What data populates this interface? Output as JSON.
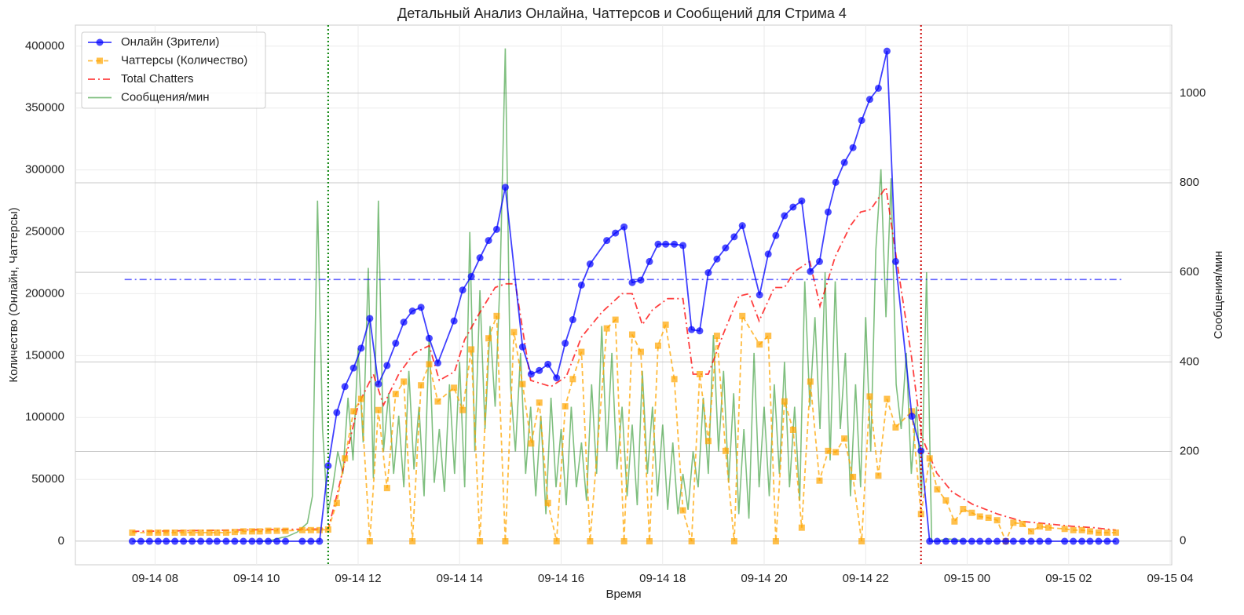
{
  "chart_data": {
    "type": "line",
    "title": "Детальный Анализ Онлайна, Чаттерсов и Сообщений для Стрима 4",
    "xlabel": "Время",
    "ylabel": "Количество (Онлайн, Чаттерсы)",
    "y2label": "Сообщения/мин",
    "xlim": [
      6.43,
      28.03
    ],
    "xticks": [
      {
        "value": 8,
        "label": "09-14 08"
      },
      {
        "value": 10,
        "label": "09-14 10"
      },
      {
        "value": 12,
        "label": "09-14 12"
      },
      {
        "value": 14,
        "label": "09-14 14"
      },
      {
        "value": 16,
        "label": "09-14 16"
      },
      {
        "value": 18,
        "label": "09-14 18"
      },
      {
        "value": 20,
        "label": "09-14 20"
      },
      {
        "value": 22,
        "label": "09-14 22"
      },
      {
        "value": 24,
        "label": "09-15 00"
      },
      {
        "value": 26,
        "label": "09-15 02"
      },
      {
        "value": 28,
        "label": "09-15 04"
      }
    ],
    "ylim": [
      -19000,
      417000
    ],
    "yticks": [
      0,
      50000,
      100000,
      150000,
      200000,
      250000,
      300000,
      350000,
      400000
    ],
    "y2lim": [
      -53,
      1152
    ],
    "y2ticks": [
      0,
      200,
      400,
      600,
      800,
      1000
    ],
    "y2color": "#008000",
    "grid": true,
    "legend": "upper left",
    "series": [
      {
        "name": "Онлайн (Зрители)",
        "color": "#0000ff",
        "linestyle": "solid",
        "marker": "circle",
        "x": [
          7.55,
          7.72,
          7.89,
          8.06,
          8.22,
          8.39,
          8.56,
          8.73,
          8.9,
          9.07,
          9.22,
          9.4,
          9.57,
          9.74,
          9.91,
          10.06,
          10.23,
          10.4,
          10.57,
          10.9,
          11.07,
          11.24,
          11.41,
          11.58,
          11.74,
          11.91,
          12.06,
          12.23,
          12.4,
          12.57,
          12.74,
          12.9,
          13.07,
          13.24,
          13.4,
          13.57,
          13.89,
          14.06,
          14.23,
          14.4,
          14.57,
          14.73,
          14.9,
          15.24,
          15.41,
          15.57,
          15.74,
          15.91,
          16.08,
          16.23,
          16.4,
          16.57,
          16.9,
          17.07,
          17.24,
          17.4,
          17.57,
          17.74,
          17.91,
          18.06,
          18.23,
          18.4,
          18.57,
          18.73,
          18.9,
          19.07,
          19.24,
          19.41,
          19.57,
          19.91,
          20.08,
          20.23,
          20.4,
          20.57,
          20.74,
          20.91,
          21.09,
          21.26,
          21.41,
          21.58,
          21.75,
          21.92,
          22.08,
          22.25,
          22.42,
          22.59,
          22.91,
          23.09,
          23.26,
          23.41,
          23.58,
          23.75,
          23.92,
          24.09,
          24.25,
          24.42,
          24.59,
          24.76,
          24.91,
          25.09,
          25.26,
          25.43,
          25.6,
          25.92,
          26.09,
          26.26,
          26.42,
          26.59,
          26.76,
          26.93
        ],
        "values": [
          0,
          0,
          0,
          0,
          0,
          0,
          0,
          0,
          0,
          0,
          0,
          0,
          0,
          0,
          0,
          0,
          0,
          0,
          0,
          0,
          0,
          0,
          61000,
          104000,
          125000,
          140000,
          156000,
          180000,
          127000,
          142000,
          160000,
          177000,
          186000,
          189000,
          164000,
          144000,
          178000,
          203000,
          214000,
          229000,
          243000,
          252000,
          286000,
          157000,
          135000,
          138000,
          143000,
          132000,
          160000,
          179000,
          207000,
          224000,
          243000,
          249000,
          254000,
          209000,
          211000,
          226000,
          240000,
          240000,
          240000,
          239000,
          171000,
          170000,
          217000,
          228000,
          237000,
          246000,
          255000,
          199000,
          232000,
          247000,
          263000,
          270000,
          275000,
          218000,
          226000,
          266000,
          290000,
          306000,
          318000,
          340000,
          357000,
          366000,
          396000,
          226000,
          101000,
          73000,
          0,
          0,
          0,
          0,
          0,
          0,
          0,
          0,
          0,
          0,
          0,
          0,
          0,
          0,
          0,
          0,
          0,
          0,
          0,
          0,
          0,
          0
        ]
      },
      {
        "name": "Чаттерсы (Количество)",
        "color": "#ffa500",
        "linestyle": "dashed",
        "marker": "square",
        "x": [
          7.55,
          7.89,
          8.06,
          8.22,
          8.39,
          8.56,
          8.73,
          8.9,
          9.07,
          9.22,
          9.4,
          9.57,
          9.74,
          9.91,
          10.06,
          10.23,
          10.4,
          10.57,
          10.9,
          11.07,
          11.24,
          11.41,
          11.58,
          11.74,
          11.91,
          12.06,
          12.23,
          12.4,
          12.57,
          12.74,
          12.9,
          13.07,
          13.24,
          13.4,
          13.57,
          13.89,
          14.06,
          14.23,
          14.4,
          14.57,
          14.73,
          14.9,
          15.07,
          15.24,
          15.41,
          15.57,
          15.74,
          15.91,
          16.08,
          16.23,
          16.4,
          16.57,
          16.9,
          17.07,
          17.24,
          17.4,
          17.57,
          17.74,
          17.91,
          18.06,
          18.23,
          18.4,
          18.57,
          18.73,
          18.9,
          19.07,
          19.24,
          19.41,
          19.57,
          19.91,
          20.08,
          20.23,
          20.4,
          20.57,
          20.74,
          20.91,
          21.09,
          21.26,
          21.41,
          21.58,
          21.75,
          21.92,
          22.08,
          22.25,
          22.42,
          22.59,
          22.91,
          23.09,
          23.26,
          23.41,
          23.58,
          23.75,
          23.92,
          24.09,
          24.25,
          24.42,
          24.59,
          24.76,
          24.91,
          25.09,
          25.26,
          25.43,
          25.6,
          25.92,
          26.09,
          26.26,
          26.42,
          26.59,
          26.76,
          26.93
        ],
        "values": [
          7000,
          7000,
          7000,
          7000,
          7000,
          7000,
          7000,
          7000,
          7000,
          7000,
          7000,
          7500,
          8000,
          8000,
          8000,
          8500,
          8500,
          8500,
          9000,
          9000,
          9000,
          9500,
          31000,
          67000,
          105000,
          115000,
          0,
          106000,
          43000,
          119000,
          129000,
          0,
          126000,
          143000,
          113000,
          124000,
          106000,
          155000,
          0,
          164000,
          182000,
          0,
          169000,
          127000,
          79000,
          112000,
          31000,
          0,
          109000,
          131000,
          153000,
          0,
          172000,
          179000,
          0,
          167000,
          153000,
          0,
          158000,
          175000,
          131000,
          25000,
          0,
          135000,
          81000,
          166000,
          73000,
          0,
          182000,
          159000,
          166000,
          0,
          113000,
          90000,
          11000,
          129000,
          49000,
          73000,
          72000,
          83000,
          52000,
          0,
          117000,
          53000,
          115000,
          92000,
          105000,
          22000,
          67000,
          42000,
          33000,
          16000,
          26000,
          23000,
          20000,
          19000,
          17000,
          0,
          15000,
          14000,
          8000,
          12000,
          11000,
          10000,
          9000,
          9000,
          8000,
          7000,
          7000,
          7000
        ]
      },
      {
        "name": "Total Chatters",
        "color": "#ff0000",
        "linestyle": "dashdot",
        "marker": null,
        "x": [
          7.55,
          11.41,
          11.6,
          12.0,
          12.3,
          12.5,
          12.8,
          13.1,
          13.4,
          13.6,
          13.9,
          14.1,
          14.4,
          14.7,
          14.9,
          15.1,
          15.4,
          15.8,
          16.1,
          16.4,
          16.8,
          17.2,
          17.4,
          17.6,
          17.8,
          18.1,
          18.4,
          18.6,
          18.9,
          19.2,
          19.5,
          19.7,
          19.9,
          20.2,
          20.4,
          20.6,
          20.9,
          21.1,
          21.4,
          21.7,
          21.9,
          22.1,
          22.4,
          22.6,
          22.9,
          23.1,
          23.4,
          23.7,
          24.1,
          24.6,
          25.1,
          25.6,
          26.1,
          26.5,
          26.93
        ],
        "values": [
          8000,
          10000,
          40000,
          110000,
          135000,
          110000,
          135000,
          152000,
          158000,
          130000,
          137000,
          163000,
          185000,
          205000,
          208000,
          208000,
          130000,
          125000,
          133000,
          165000,
          185000,
          200000,
          200000,
          175000,
          187000,
          196000,
          196000,
          135000,
          135000,
          168000,
          198000,
          200000,
          178000,
          205000,
          205000,
          218000,
          226000,
          190000,
          230000,
          255000,
          266000,
          268000,
          286000,
          230000,
          150000,
          85000,
          55000,
          40000,
          30000,
          22000,
          16000,
          14000,
          12000,
          11000,
          9000
        ]
      },
      {
        "name": "Сообщения/мин",
        "color": "#008000",
        "linestyle": "solid",
        "marker": null,
        "axis": "y2",
        "x": [
          10.0,
          10.1,
          10.2,
          10.3,
          10.4,
          10.5,
          10.6,
          10.7,
          10.8,
          10.9,
          11.0,
          11.1,
          11.2,
          11.3,
          11.4,
          11.5,
          11.6,
          11.7,
          11.8,
          11.9,
          12.0,
          12.1,
          12.2,
          12.3,
          12.4,
          12.5,
          12.6,
          12.7,
          12.8,
          12.9,
          13.0,
          13.1,
          13.2,
          13.3,
          13.4,
          13.5,
          13.6,
          13.7,
          13.8,
          13.9,
          14.0,
          14.1,
          14.2,
          14.3,
          14.4,
          14.5,
          14.6,
          14.7,
          14.8,
          14.9,
          15.0,
          15.1,
          15.2,
          15.3,
          15.4,
          15.5,
          15.6,
          15.7,
          15.8,
          15.9,
          16.0,
          16.1,
          16.2,
          16.3,
          16.4,
          16.5,
          16.6,
          16.7,
          16.8,
          16.9,
          17.0,
          17.1,
          17.2,
          17.3,
          17.4,
          17.5,
          17.6,
          17.7,
          17.8,
          17.9,
          18.0,
          18.1,
          18.2,
          18.3,
          18.4,
          18.5,
          18.6,
          18.7,
          18.8,
          18.9,
          19.0,
          19.1,
          19.2,
          19.3,
          19.4,
          19.5,
          19.6,
          19.7,
          19.8,
          19.9,
          20.0,
          20.1,
          20.2,
          20.3,
          20.4,
          20.5,
          20.6,
          20.7,
          20.8,
          20.9,
          21.0,
          21.1,
          21.2,
          21.3,
          21.4,
          21.5,
          21.6,
          21.7,
          21.8,
          21.9,
          22.0,
          22.1,
          22.2,
          22.3,
          22.4,
          22.5,
          22.6,
          22.7,
          22.8,
          22.9,
          23.0,
          23.1,
          23.2,
          23.3,
          23.4,
          23.6,
          23.8,
          24.0
        ],
        "values": [
          0,
          0,
          0,
          2,
          5,
          8,
          10,
          15,
          20,
          30,
          40,
          100,
          760,
          250,
          60,
          120,
          200,
          150,
          320,
          180,
          430,
          220,
          610,
          140,
          760,
          200,
          330,
          150,
          280,
          120,
          380,
          160,
          300,
          100,
          460,
          130,
          250,
          110,
          350,
          150,
          400,
          120,
          690,
          200,
          560,
          250,
          480,
          300,
          600,
          1100,
          350,
          200,
          420,
          150,
          300,
          100,
          280,
          60,
          320,
          120,
          250,
          80,
          300,
          120,
          220,
          90,
          350,
          150,
          480,
          200,
          420,
          160,
          300,
          100,
          260,
          80,
          380,
          150,
          300,
          100,
          260,
          70,
          220,
          60,
          150,
          70,
          200,
          120,
          320,
          150,
          460,
          200,
          380,
          130,
          330,
          60,
          250,
          50,
          420,
          120,
          300,
          100,
          350,
          150,
          400,
          120,
          300,
          90,
          580,
          300,
          500,
          250,
          600,
          180,
          580,
          250,
          420,
          100,
          350,
          120,
          500,
          200,
          650,
          830,
          500,
          810,
          350,
          250,
          420,
          150,
          300,
          100,
          600,
          0,
          0,
          5,
          3,
          0
        ]
      }
    ],
    "hline": {
      "value": 211500,
      "xmin": 7.4,
      "xmax": 27.08,
      "color": "#0000ff"
    },
    "vlines": [
      {
        "x": 11.41,
        "color": "#008000"
      },
      {
        "x": 23.09,
        "color": "#cc0000"
      }
    ]
  }
}
